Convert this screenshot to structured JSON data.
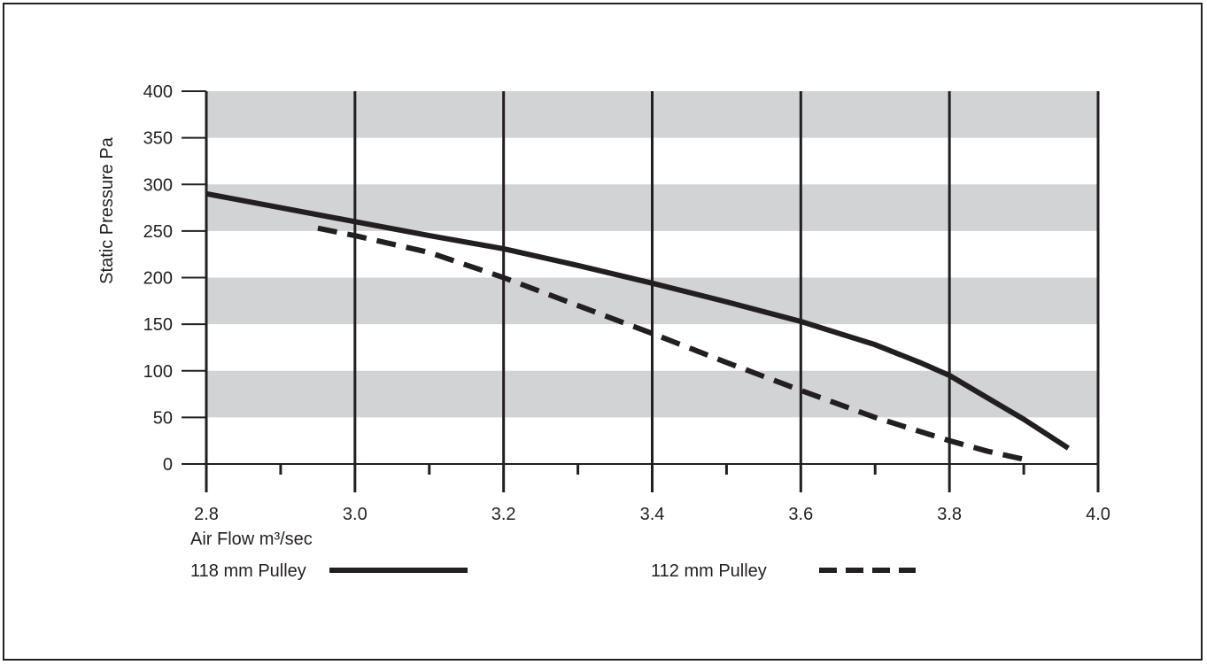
{
  "chart_data": {
    "type": "line",
    "title": "",
    "xlabel": "Air Flow m³/sec",
    "ylabel": "Static Pressure Pa",
    "xlim": [
      2.8,
      4.0
    ],
    "ylim": [
      0,
      400
    ],
    "x_ticks": [
      "2.8",
      "3.0",
      "3.2",
      "3.4",
      "3.6",
      "3.8",
      "4.0"
    ],
    "y_ticks": [
      "0",
      "50",
      "100",
      "150",
      "200",
      "250",
      "300",
      "350",
      "400"
    ],
    "grid": "vertical lines at labeled x ticks; alternating gray horizontal bands every 50 Pa",
    "legend_position": "bottom",
    "series": [
      {
        "name": "118 mm Pulley",
        "style": "solid",
        "x": [
          2.8,
          2.9,
          3.0,
          3.1,
          3.2,
          3.3,
          3.4,
          3.5,
          3.6,
          3.7,
          3.76,
          3.8,
          3.9,
          3.96
        ],
        "y": [
          290,
          275,
          260,
          245,
          231,
          213,
          194,
          174,
          153,
          128,
          109,
          95,
          48,
          17
        ]
      },
      {
        "name": "112 mm Pulley",
        "style": "dashed",
        "x": [
          2.95,
          3.0,
          3.1,
          3.2,
          3.3,
          3.4,
          3.5,
          3.6,
          3.7,
          3.8,
          3.85,
          3.9
        ],
        "y": [
          253,
          245,
          227,
          200,
          170,
          140,
          109,
          79,
          50,
          25,
          14,
          5
        ]
      }
    ],
    "colors": {
      "line": "#231f20",
      "band": "#d1d3d4",
      "text": "#231f20"
    }
  }
}
